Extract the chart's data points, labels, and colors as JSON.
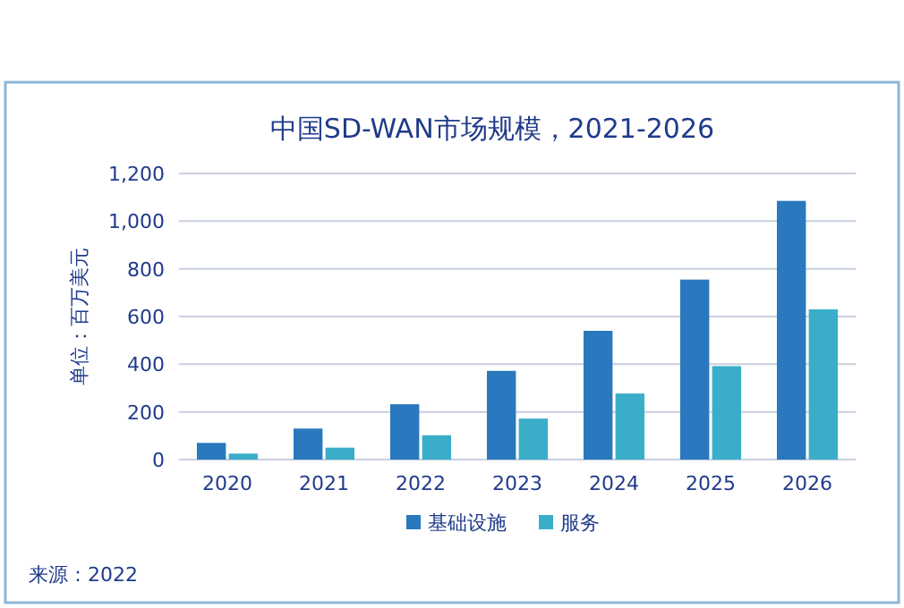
{
  "chart_data": {
    "type": "bar",
    "title": "中国SD-WAN市场规模，2021-2026",
    "ylabel": "单位：百万美元",
    "categories": [
      "2020",
      "2021",
      "2022",
      "2023",
      "2024",
      "2025",
      "2026"
    ],
    "series": [
      {
        "name": "基础设施",
        "color": "#2a78bd",
        "values": [
          70,
          130,
          232,
          372,
          540,
          755,
          1085
        ]
      },
      {
        "name": "服务",
        "color": "#3aaec8",
        "values": [
          25,
          50,
          102,
          172,
          277,
          392,
          630
        ]
      }
    ],
    "ylim": [
      0,
      1200
    ],
    "yticks": [
      {
        "value": 0,
        "label": "0"
      },
      {
        "value": 200,
        "label": "200"
      },
      {
        "value": 400,
        "label": "400"
      },
      {
        "value": 600,
        "label": "600"
      },
      {
        "value": 800,
        "label": "800"
      },
      {
        "value": 1000,
        "label": "1,000"
      },
      {
        "value": 1200,
        "label": "1,200"
      }
    ],
    "grid": "y",
    "legend": "bottom",
    "annotations": [
      "来源：2022"
    ]
  }
}
